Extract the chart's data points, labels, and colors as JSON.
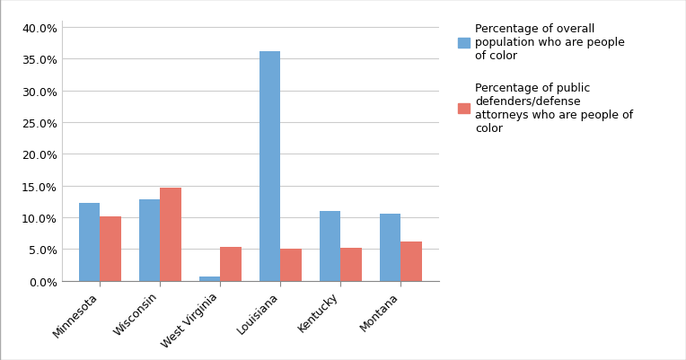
{
  "categories": [
    "Minnesota",
    "Wisconsin",
    "West Virginia",
    "Louisiana",
    "Kentucky",
    "Montana"
  ],
  "series1_values": [
    12.3,
    12.8,
    0.7,
    36.2,
    11.0,
    10.5
  ],
  "series2_values": [
    10.2,
    14.6,
    5.3,
    5.0,
    5.2,
    6.1
  ],
  "series1_label": "Percentage of overall\npopulation who are people\nof color",
  "series2_label": "Percentage of public\ndefenders/defense\nattorneys who are people of\ncolor",
  "series1_color": "#6ea8d8",
  "series2_color": "#e8776a",
  "ylim": [
    0,
    0.41
  ],
  "yticks": [
    0.0,
    0.05,
    0.1,
    0.15,
    0.2,
    0.25,
    0.3,
    0.35,
    0.4
  ],
  "ytick_labels": [
    "0.0%",
    "5.0%",
    "10.0%",
    "15.0%",
    "20.0%",
    "25.0%",
    "30.0%",
    "35.0%",
    "40.0%"
  ],
  "background_color": "#ffffff",
  "bar_width": 0.35,
  "legend_fontsize": 9.0,
  "tick_fontsize": 9.0,
  "figure_border_color": "#b0b0b0"
}
